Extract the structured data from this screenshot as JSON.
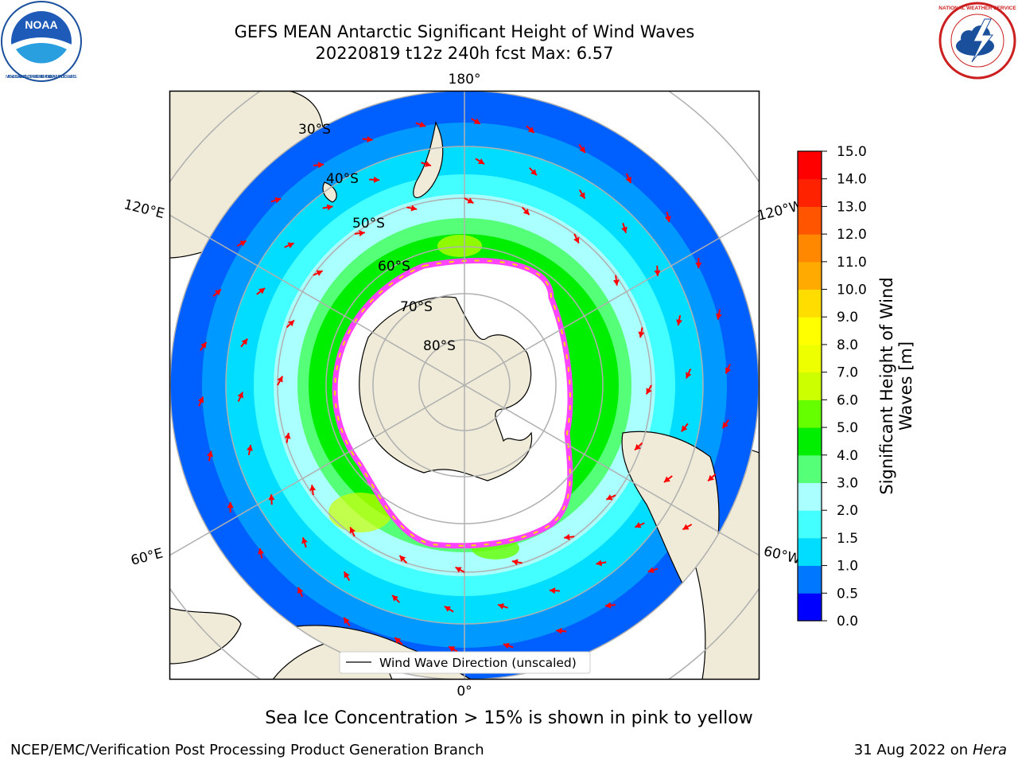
{
  "header": {
    "title_line1": "GEFS MEAN Antarctic Significant Height of Wind Waves",
    "title_line2": "20220819 t12z 240h fcst   Max: 6.57"
  },
  "logos": {
    "left": {
      "icon": "noaa-logo-icon",
      "text": "NATIONAL OCEANIC AND ATMOSPHERIC ADMINISTRATION · U.S. DEPARTMENT OF COMMERCE",
      "label": "NOAA"
    },
    "right": {
      "icon": "nws-logo-icon",
      "text": "NATIONAL WEATHER SERVICE"
    }
  },
  "map": {
    "longitude_labels": [
      "180°",
      "0°",
      "120°E",
      "120°W",
      "60°E",
      "60°W"
    ],
    "latitude_labels": [
      "30°S",
      "40°S",
      "50°S",
      "60°S",
      "70°S",
      "80°S"
    ],
    "legend_label": "Wind Wave Direction (unscaled)",
    "colors": {
      "land": "#efebd8",
      "ocean_low": "#0000ff",
      "sea_ice": "#ff44ff",
      "grid": "#b0b0b0",
      "arrow": "#ff0000"
    }
  },
  "colorbar": {
    "label": "Significant Height of Wind Waves [m]",
    "label_line1": "Significant Height of Wind",
    "label_line2": "Waves [m]",
    "ticks": [
      "0.0",
      "0.5",
      "1.0",
      "1.5",
      "2.0",
      "3.0",
      "4.0",
      "5.0",
      "6.0",
      "7.0",
      "8.0",
      "9.0",
      "10.0",
      "11.0",
      "12.0",
      "13.0",
      "14.0",
      "15.0"
    ],
    "colors": [
      "#0000ff",
      "#0077ff",
      "#00ddff",
      "#44ffff",
      "#aaffff",
      "#55ff77",
      "#00ee00",
      "#66ff00",
      "#ccff00",
      "#eeff00",
      "#ffff00",
      "#ffdd00",
      "#ffaa00",
      "#ff8800",
      "#ff5500",
      "#ff2200",
      "#ff0000"
    ]
  },
  "footer": {
    "ice_note": "Sea Ice Concentration > 15% is shown in pink to yellow",
    "credit": "NCEP/EMC/Verification Post Processing Product Generation Branch",
    "date": "31 Aug 2022 on",
    "host": "Hera"
  }
}
